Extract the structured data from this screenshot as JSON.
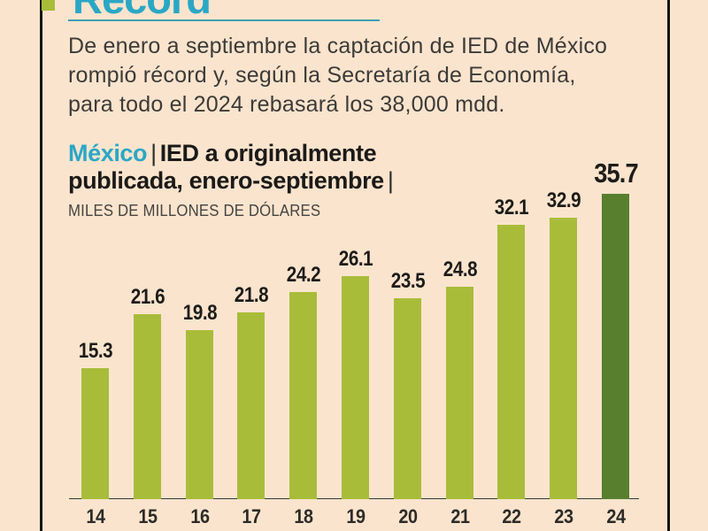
{
  "page": {
    "background": "#fbe4ce",
    "frame_color": "#161511"
  },
  "header": {
    "headline": "Récord",
    "headline_color": "#2aa7c5",
    "bullet_color": "#a8bc3a"
  },
  "intro": {
    "lines": [
      "De enero a septiembre la captación de IED de México",
      "rompió récord y, según la Secretaría de Economía,",
      "para todo el 2024 rebasará los 38,000 mdd."
    ]
  },
  "chart": {
    "brand": "México",
    "sep1": "|",
    "title_line1_rest": "IED a originalmente",
    "title_line2": "publicada, enero-septiembre",
    "sep2": "|",
    "unit_label": "MILES DE MILLONES DE DÓLARES"
  },
  "chart_data": {
    "type": "bar",
    "title": "México | IED a originalmente publicada, enero-septiembre",
    "ylabel": "MILES DE MILLONES DE DÓLARES",
    "categories": [
      "14",
      "15",
      "16",
      "17",
      "18",
      "19",
      "20",
      "21",
      "22",
      "23",
      "24"
    ],
    "values": [
      15.3,
      21.6,
      19.8,
      21.8,
      24.2,
      26.1,
      23.5,
      24.8,
      32.1,
      32.9,
      35.7
    ],
    "highlight_index": 10,
    "bar_color": "#a8bc3a",
    "highlight_color": "#577f2e",
    "ylim": [
      0,
      38
    ],
    "grid": false,
    "legend": false
  }
}
